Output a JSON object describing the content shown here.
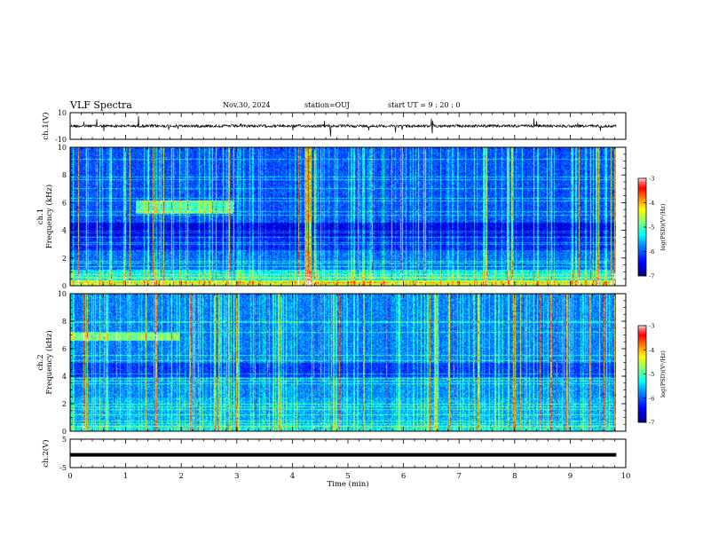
{
  "header": {
    "title": "VLF Spectra",
    "date": "Nov.30, 2024",
    "station": "station=OUJ",
    "start": "start UT =  9 : 20 : 0"
  },
  "colors": {
    "axis": "#000000",
    "waveform": "#000000",
    "colormap": [
      "#00007f",
      "#0000ff",
      "#0080ff",
      "#00ffff",
      "#80ff80",
      "#ffff00",
      "#ff8000",
      "#ff0000",
      "#800000",
      "#ffffff"
    ]
  },
  "chart_data": [
    {
      "type": "line",
      "name": "ch1-waveform",
      "ylabel": "ch.1(V)",
      "ylim": [
        -10,
        10
      ],
      "yticks": [
        10,
        -10
      ],
      "xlim": [
        0,
        10
      ],
      "baseline": 0
    },
    {
      "type": "heatmap",
      "name": "ch1-spectrogram",
      "ylabel": "ch.1\nFrequency (kHz)",
      "ylim": [
        0,
        10
      ],
      "yticks": [
        0,
        2,
        4,
        6,
        8,
        10
      ],
      "xlim": [
        0,
        10
      ],
      "data_end_min": 9.83,
      "colorbar": {
        "label": "log(PSD)(V²/Hz)",
        "range": [
          -7,
          -3
        ],
        "ticks": [
          -3,
          -4,
          -5,
          -6,
          -7
        ]
      }
    },
    {
      "type": "heatmap",
      "name": "ch2-spectrogram",
      "ylabel": "ch.2\nFrequency (kHz)",
      "ylim": [
        0,
        10
      ],
      "yticks": [
        0,
        2,
        4,
        6,
        8,
        10
      ],
      "xlim": [
        0,
        10
      ],
      "data_end_min": 9.83,
      "colorbar": {
        "label": "log(PSD)(V²/Hz)",
        "range": [
          -7,
          -3
        ],
        "ticks": [
          -3,
          -4,
          -5,
          -6,
          -7
        ]
      }
    },
    {
      "type": "line",
      "name": "ch2-waveform",
      "ylabel": "ch.2(V)",
      "ylim": [
        -5,
        5
      ],
      "yticks": [
        5,
        -5
      ],
      "xlim": [
        0,
        10
      ],
      "baseline": -0.5
    }
  ],
  "xaxis": {
    "label": "Time (min)",
    "ticks": [
      0,
      1,
      2,
      3,
      4,
      5,
      6,
      7,
      8,
      9,
      10
    ]
  }
}
